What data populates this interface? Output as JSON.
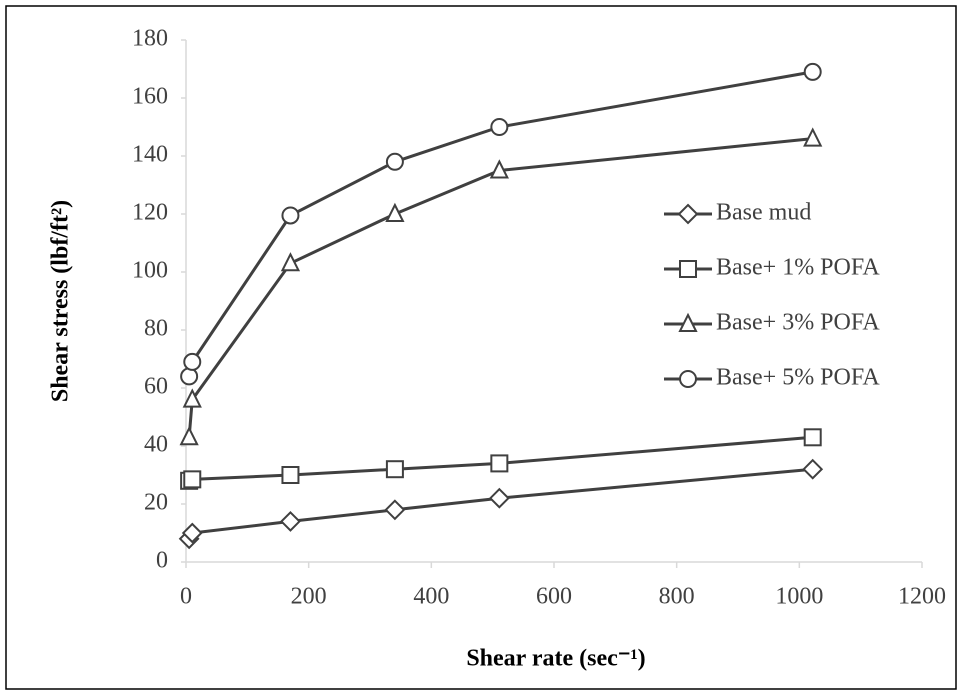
{
  "chart_data": {
    "type": "line",
    "x_label": "Shear rate (sec⁻¹)",
    "y_label": "Shear stress (lbf/ft²)",
    "x": [
      5.11,
      10.22,
      170.3,
      340.6,
      510.9,
      1021.8
    ],
    "series": [
      {
        "name": "Base mud",
        "color": "#404040",
        "marker": "diamond",
        "values": [
          8,
          10,
          14,
          18,
          22,
          32
        ]
      },
      {
        "name": "Base+ 1% POFA",
        "color": "#404040",
        "marker": "square",
        "values": [
          28,
          28.5,
          30,
          32,
          34,
          43
        ]
      },
      {
        "name": "Base+ 3% POFA",
        "color": "#404040",
        "marker": "triangle",
        "values": [
          43,
          56,
          103,
          120,
          135,
          146
        ]
      },
      {
        "name": "Base+ 5% POFA",
        "color": "#404040",
        "marker": "circle",
        "values": [
          64,
          69,
          119.5,
          138,
          150,
          169
        ]
      }
    ],
    "xlim": [
      0,
      1200
    ],
    "xticks": [
      0,
      200,
      400,
      600,
      800,
      1000,
      1200
    ],
    "ylim": [
      0,
      180
    ],
    "yticks": [
      0,
      20,
      40,
      60,
      80,
      100,
      120,
      140,
      160,
      180
    ],
    "grid": false,
    "legend": "right"
  }
}
